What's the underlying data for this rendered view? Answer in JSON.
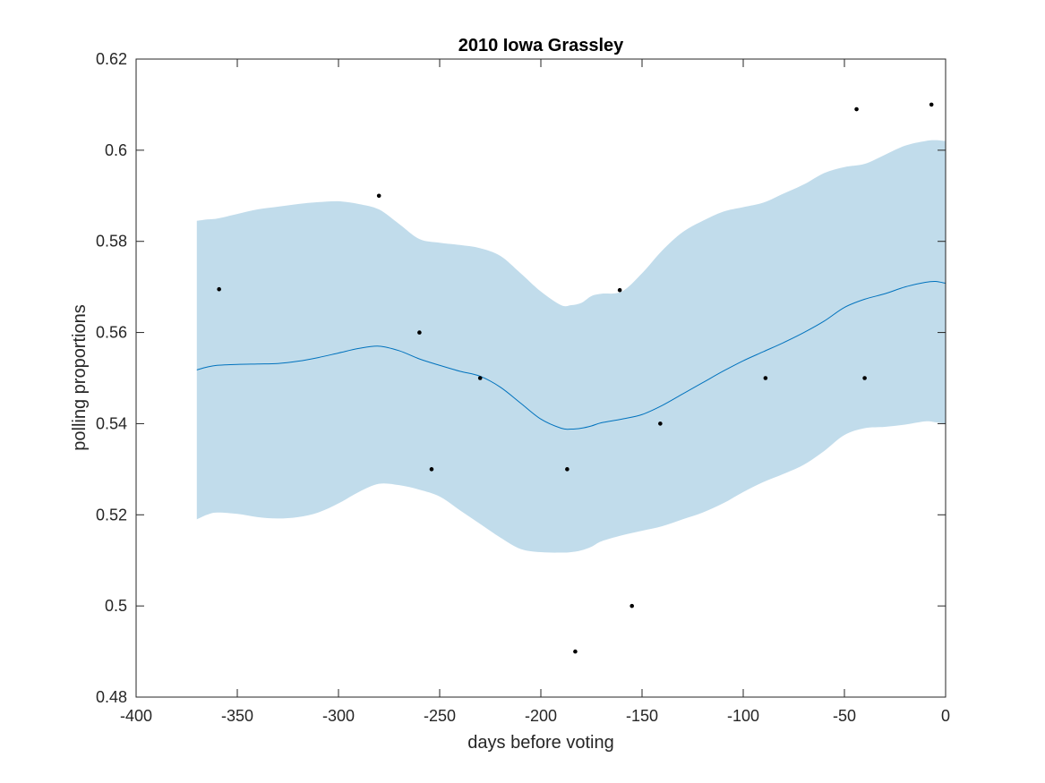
{
  "chart_data": {
    "type": "scatter",
    "title": "2010 Iowa Grassley",
    "xlabel": "days before voting",
    "ylabel": "polling proportions",
    "xlim": [
      -400,
      0
    ],
    "ylim": [
      0.48,
      0.62
    ],
    "xticks": [
      -400,
      -350,
      -300,
      -250,
      -200,
      -150,
      -100,
      -50,
      0
    ],
    "xtick_labels": [
      "-400",
      "-350",
      "-300",
      "-250",
      "-200",
      "-150",
      "-100",
      "-50",
      "0"
    ],
    "yticks": [
      0.48,
      0.5,
      0.52,
      0.54,
      0.56,
      0.58,
      0.6,
      0.62
    ],
    "ytick_labels": [
      "0.48",
      "0.5",
      "0.52",
      "0.54",
      "0.56",
      "0.58",
      "0.6",
      "0.62"
    ],
    "grid": false,
    "colors": {
      "band": "#c1dceb",
      "mean_line": "#0072bd",
      "points": "#000000"
    },
    "series": [
      {
        "type": "area",
        "x": [
          -370,
          -365,
          -360,
          -350,
          -340,
          -330,
          -320,
          -310,
          -300,
          -290,
          -280,
          -270,
          -260,
          -250,
          -240,
          -230,
          -220,
          -210,
          -200,
          -190,
          -185,
          -180,
          -175,
          -170,
          -160,
          -150,
          -140,
          -130,
          -120,
          -110,
          -100,
          -90,
          -80,
          -70,
          -60,
          -50,
          -40,
          -30,
          -20,
          -10,
          -5,
          0
        ],
        "upper": [
          0.5845,
          0.5848,
          0.585,
          0.586,
          0.587,
          0.5876,
          0.5882,
          0.5886,
          0.5888,
          0.5882,
          0.587,
          0.5838,
          0.5805,
          0.5797,
          0.5792,
          0.5785,
          0.5768,
          0.573,
          0.569,
          0.566,
          0.566,
          0.5665,
          0.568,
          0.5685,
          0.569,
          0.573,
          0.578,
          0.582,
          0.5845,
          0.5865,
          0.5875,
          0.5885,
          0.5905,
          0.5925,
          0.595,
          0.5963,
          0.597,
          0.599,
          0.601,
          0.602,
          0.6022,
          0.602
        ],
        "lower": [
          0.519,
          0.52,
          0.5205,
          0.5202,
          0.5195,
          0.5192,
          0.5195,
          0.5205,
          0.5225,
          0.525,
          0.5268,
          0.5265,
          0.5255,
          0.524,
          0.521,
          0.518,
          0.515,
          0.5125,
          0.5118,
          0.5117,
          0.5118,
          0.5122,
          0.513,
          0.5142,
          0.5155,
          0.5165,
          0.5175,
          0.519,
          0.5205,
          0.5225,
          0.525,
          0.5272,
          0.529,
          0.531,
          0.534,
          0.5375,
          0.539,
          0.5393,
          0.5398,
          0.5405,
          0.5403,
          0.54
        ]
      },
      {
        "type": "line",
        "x": [
          -370,
          -365,
          -360,
          -350,
          -340,
          -330,
          -320,
          -310,
          -300,
          -290,
          -280,
          -270,
          -260,
          -250,
          -240,
          -230,
          -220,
          -210,
          -200,
          -190,
          -185,
          -180,
          -175,
          -170,
          -160,
          -150,
          -140,
          -130,
          -120,
          -110,
          -100,
          -90,
          -80,
          -70,
          -60,
          -50,
          -40,
          -30,
          -20,
          -10,
          -5,
          0
        ],
        "values": [
          0.5518,
          0.5524,
          0.5528,
          0.553,
          0.5531,
          0.5532,
          0.5537,
          0.5545,
          0.5555,
          0.5565,
          0.557,
          0.556,
          0.5542,
          0.5528,
          0.5515,
          0.5504,
          0.548,
          0.5445,
          0.541,
          0.539,
          0.5388,
          0.539,
          0.5395,
          0.5402,
          0.541,
          0.542,
          0.544,
          0.5465,
          0.549,
          0.5515,
          0.5538,
          0.5558,
          0.5578,
          0.56,
          0.5625,
          0.5655,
          0.5673,
          0.5685,
          0.57,
          0.571,
          0.5712,
          0.5708
        ]
      },
      {
        "type": "scatter",
        "x": [
          -359,
          -280,
          -260,
          -254,
          -230,
          -187,
          -183,
          -161,
          -155,
          -141,
          -89,
          -44,
          -40,
          -7
        ],
        "values": [
          0.5695,
          0.59,
          0.56,
          0.53,
          0.55,
          0.53,
          0.49,
          0.5693,
          0.5,
          0.54,
          0.55,
          0.609,
          0.55,
          0.61
        ]
      }
    ]
  }
}
